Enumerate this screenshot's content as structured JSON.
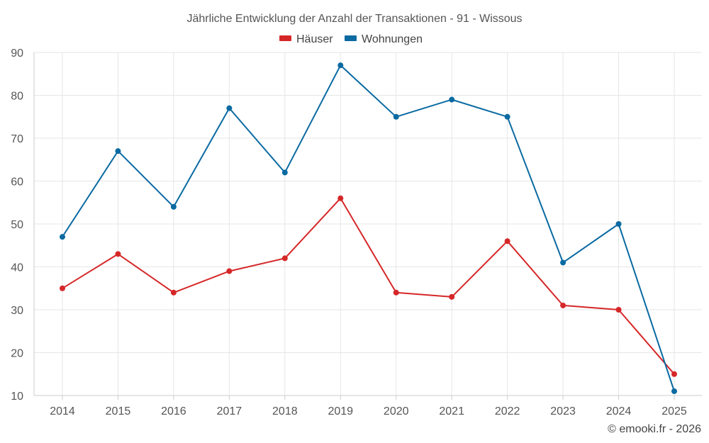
{
  "chart_data": {
    "type": "line",
    "title": "Jährliche Entwicklung der Anzahl der Transaktionen - 91 - Wissous",
    "categories": [
      "2014",
      "2015",
      "2016",
      "2017",
      "2018",
      "2019",
      "2020",
      "2021",
      "2022",
      "2023",
      "2024",
      "2025"
    ],
    "y_ticks": [
      "10",
      "20",
      "30",
      "40",
      "50",
      "60",
      "70",
      "80",
      "90"
    ],
    "ylim": [
      10,
      90
    ],
    "grid": true,
    "legend_position": "top-center",
    "series": [
      {
        "name": "Häuser",
        "color": "#d62728",
        "values": [
          35,
          43,
          34,
          39,
          42,
          56,
          34,
          33,
          46,
          31,
          30,
          15
        ]
      },
      {
        "name": "Wohnungen",
        "color": "#0a6aa1",
        "values": [
          47,
          67,
          54,
          77,
          62,
          87,
          75,
          79,
          75,
          41,
          50,
          11
        ]
      }
    ]
  },
  "credit": "© emooki.fr - 2026"
}
